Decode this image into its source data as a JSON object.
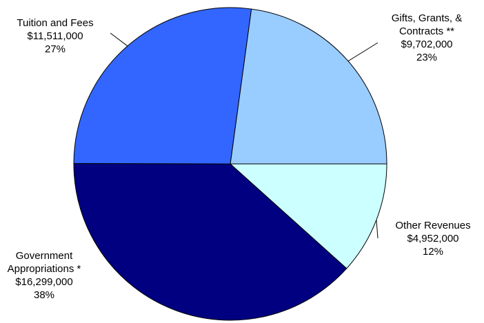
{
  "chart_data": {
    "type": "pie",
    "title": "",
    "slices": [
      {
        "label_lines": [
          "Gifts, Grants, &",
          "Contracts **"
        ],
        "amount": "$9,702,000",
        "value": 9702000,
        "percent_label": "23%",
        "color": "#99ccff"
      },
      {
        "label_lines": [
          "Other Revenues"
        ],
        "amount": "$4,952,000",
        "value": 4952000,
        "percent_label": "12%",
        "color": "#ccffff"
      },
      {
        "label_lines": [
          "Government",
          "Appropriations *"
        ],
        "amount": "$16,299,000",
        "value": 16299000,
        "percent_label": "38%",
        "color": "#000080"
      },
      {
        "label_lines": [
          "Tuition and Fees"
        ],
        "amount": "$11,511,000",
        "value": 11511000,
        "percent_label": "27%",
        "color": "#3366ff"
      }
    ]
  }
}
